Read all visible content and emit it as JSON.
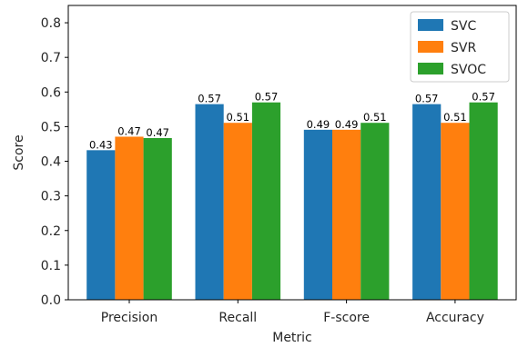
{
  "chart_data": {
    "type": "bar",
    "xlabel": "Metric",
    "ylabel": "Score",
    "ylim": [
      0,
      0.85
    ],
    "yticks": [
      0.0,
      0.1,
      0.2,
      0.3,
      0.4,
      0.5,
      0.6,
      0.7,
      0.8
    ],
    "ytick_labels": [
      "0.0",
      "0.1",
      "0.2",
      "0.3",
      "0.4",
      "0.5",
      "0.6",
      "0.7",
      "0.8"
    ],
    "categories": [
      "Precision",
      "Recall",
      "F-score",
      "Accuracy"
    ],
    "series": [
      {
        "name": "SVC",
        "color": "#1f77b4",
        "values": [
          0.432,
          0.565,
          0.491,
          0.565
        ],
        "labels": [
          "0.43",
          "0.57",
          "0.49",
          "0.57"
        ]
      },
      {
        "name": "SVR",
        "color": "#ff7f0e",
        "values": [
          0.471,
          0.511,
          0.491,
          0.511
        ],
        "labels": [
          "0.47",
          "0.51",
          "0.49",
          "0.51"
        ]
      },
      {
        "name": "SVOC",
        "color": "#2ca02c",
        "values": [
          0.467,
          0.57,
          0.511,
          0.57
        ],
        "labels": [
          "0.47",
          "0.57",
          "0.51",
          "0.57"
        ]
      }
    ],
    "legend": {
      "placement": "top-right"
    },
    "grid": false
  }
}
